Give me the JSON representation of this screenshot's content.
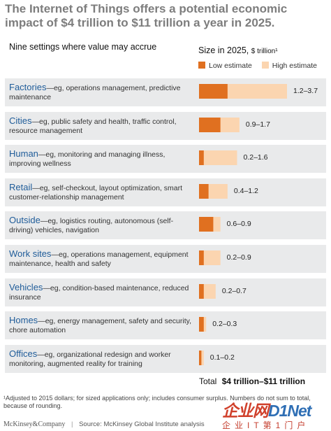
{
  "title": "The Internet of Things offers a potential economic impact of $4 trillion to $11 trillion a year in 2025.",
  "header": {
    "left": "Nine settings where value may accrue",
    "size_label": "Size in 2025,",
    "size_unit": "$ trillion¹"
  },
  "legend": [
    {
      "label": "Low estimate",
      "color": "#e07020"
    },
    {
      "label": "High estimate",
      "color": "#fbd5b0"
    }
  ],
  "chart_data": {
    "type": "bar",
    "title": "",
    "xlabel": "",
    "ylabel": "",
    "categories": [
      "Factories",
      "Cities",
      "Human",
      "Retail",
      "Outside",
      "Work sites",
      "Vehicles",
      "Homes",
      "Offices"
    ],
    "descriptions": [
      "—eg, operations management, predictive maintenance",
      "—eg, public safety and health, traffic control, resource management",
      "—eg, monitoring and managing illness, improving wellness",
      "—eg, self-checkout, layout optimization, smart customer-relationship management",
      "—eg, logistics routing, autonomous (self-driving) vehicles, navigation",
      "—eg, operations management, equipment maintenance, health and safety",
      "—eg, condition-based maintenance, reduced insurance",
      "—eg, energy management, safety and security, chore automation",
      "—eg, organizational redesign and worker monitoring, augmented reality for training"
    ],
    "range_labels": [
      "1.2–3.7",
      "0.9–1.7",
      "0.2–1.6",
      "0.4–1.2",
      "0.6–0.9",
      "0.2–0.9",
      "0.2–0.7",
      "0.2–0.3",
      "0.1–0.2"
    ],
    "series": [
      {
        "name": "Low estimate",
        "values": [
          1.2,
          0.9,
          0.2,
          0.4,
          0.6,
          0.2,
          0.2,
          0.2,
          0.1
        ]
      },
      {
        "name": "High estimate",
        "values": [
          3.7,
          1.7,
          1.6,
          1.2,
          0.9,
          0.9,
          0.7,
          0.3,
          0.2
        ]
      }
    ],
    "colors": {
      "low": "#e07020",
      "high": "#fbd5b0"
    },
    "xlim": [
      0,
      3.7
    ],
    "grid": false,
    "legend_position": "top-right"
  },
  "total": {
    "label": "Total",
    "value": "$4 trillion–$11 trillion"
  },
  "footnote": "¹Adjusted to 2015 dollars; for sized applications only; includes consumer surplus. Numbers do not sum to total, because of rounding.",
  "source": {
    "brand": "McKinsey&Company",
    "separator": "|",
    "text": "Source: McKinsey Global Institute analysis"
  },
  "watermark": {
    "logo_red": "企业网",
    "logo_blue": "D1Net",
    "sub": "企业IT第1门户"
  }
}
